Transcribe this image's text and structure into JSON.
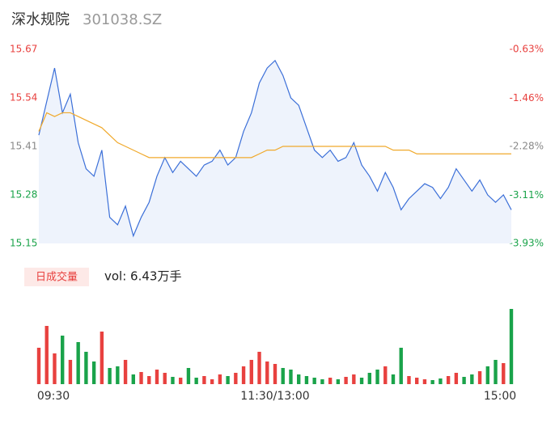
{
  "header": {
    "name": "深水规院",
    "code": "301038.SZ"
  },
  "chart_data": [
    {
      "type": "line",
      "categories": [
        "09:30",
        null,
        null,
        null,
        null,
        null,
        null,
        null,
        null,
        null,
        null,
        null,
        null,
        null,
        null,
        null,
        null,
        null,
        null,
        null,
        null,
        null,
        null,
        null,
        null,
        null,
        null,
        null,
        null,
        null,
        "11:30/13:00",
        null,
        null,
        null,
        null,
        null,
        null,
        null,
        null,
        null,
        null,
        null,
        null,
        null,
        null,
        null,
        null,
        null,
        null,
        null,
        null,
        null,
        null,
        null,
        null,
        null,
        null,
        null,
        null,
        null,
        "15:00"
      ],
      "series": [
        {
          "name": "price",
          "color": "#3b6fd8",
          "values": [
            15.44,
            15.53,
            15.62,
            15.5,
            15.55,
            15.42,
            15.35,
            15.33,
            15.4,
            15.22,
            15.2,
            15.25,
            15.17,
            15.22,
            15.26,
            15.33,
            15.38,
            15.34,
            15.37,
            15.35,
            15.33,
            15.36,
            15.37,
            15.4,
            15.36,
            15.38,
            15.45,
            15.5,
            15.58,
            15.62,
            15.64,
            15.6,
            15.54,
            15.52,
            15.46,
            15.4,
            15.38,
            15.4,
            15.37,
            15.38,
            15.42,
            15.36,
            15.33,
            15.29,
            15.34,
            15.3,
            15.24,
            15.27,
            15.29,
            15.31,
            15.3,
            15.27,
            15.3,
            15.35,
            15.32,
            15.29,
            15.32,
            15.28,
            15.26,
            15.28,
            15.24
          ]
        },
        {
          "name": "average",
          "color": "#f0a92b",
          "values": [
            15.45,
            15.5,
            15.49,
            15.5,
            15.5,
            15.49,
            15.48,
            15.47,
            15.46,
            15.44,
            15.42,
            15.41,
            15.4,
            15.39,
            15.38,
            15.38,
            15.38,
            15.38,
            15.38,
            15.38,
            15.38,
            15.38,
            15.38,
            15.38,
            15.38,
            15.38,
            15.38,
            15.38,
            15.39,
            15.4,
            15.4,
            15.41,
            15.41,
            15.41,
            15.41,
            15.41,
            15.41,
            15.41,
            15.41,
            15.41,
            15.41,
            15.41,
            15.41,
            15.41,
            15.41,
            15.4,
            15.4,
            15.4,
            15.39,
            15.39,
            15.39,
            15.39,
            15.39,
            15.39,
            15.39,
            15.39,
            15.39,
            15.39,
            15.39,
            15.39,
            15.39
          ]
        }
      ],
      "ylim": [
        15.15,
        15.67
      ],
      "yticks": [
        15.67,
        15.54,
        15.41,
        15.28,
        15.15
      ],
      "y2lim": [
        -3.93,
        -0.63
      ],
      "y2ticks": [
        {
          "value": -0.63,
          "label": "-0.63%"
        },
        {
          "value": -1.46,
          "label": "-1.46%"
        },
        {
          "value": -2.28,
          "label": "-2.28%"
        },
        {
          "value": -3.11,
          "label": "-3.11%"
        },
        {
          "value": -3.93,
          "label": "-3.93%"
        }
      ],
      "up_color": "#e8413f",
      "down_color": "#1aa34a",
      "flat_color": "#888888"
    },
    {
      "type": "bar",
      "title": "日成交量",
      "subtitle": "vol: 6.43万手",
      "values": [
        45,
        72,
        38,
        60,
        30,
        52,
        40,
        28,
        65,
        20,
        22,
        30,
        12,
        15,
        10,
        18,
        14,
        9,
        8,
        20,
        8,
        10,
        6,
        12,
        10,
        14,
        22,
        30,
        40,
        28,
        25,
        20,
        18,
        12,
        10,
        8,
        6,
        8,
        6,
        9,
        12,
        8,
        14,
        18,
        22,
        12,
        45,
        10,
        8,
        6,
        5,
        7,
        10,
        14,
        9,
        12,
        16,
        22,
        30,
        26,
        93
      ],
      "ylim": [
        0,
        100
      ]
    }
  ]
}
